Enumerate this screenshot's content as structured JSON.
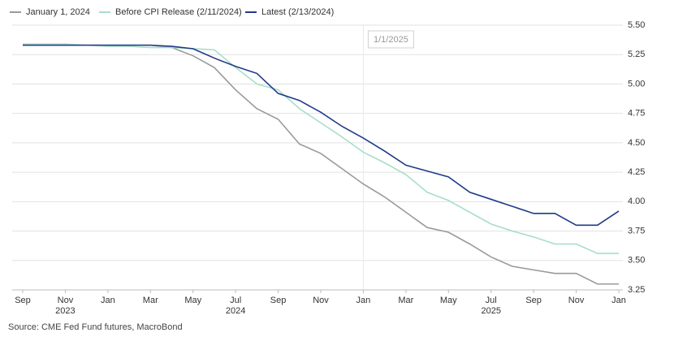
{
  "chart_data": {
    "type": "line",
    "categories": [
      "Sep",
      null,
      "Nov",
      null,
      "Jan",
      null,
      "Mar",
      null,
      "May",
      null,
      "Jul",
      null,
      "Sep",
      null,
      "Nov",
      null,
      "Jan",
      null,
      "Mar",
      null,
      "May",
      null,
      "Jul",
      null,
      "Sep",
      null,
      "Nov",
      null,
      "Jan"
    ],
    "category_years": [
      null,
      null,
      "2023",
      null,
      null,
      null,
      null,
      null,
      null,
      null,
      "2024",
      null,
      null,
      null,
      null,
      null,
      null,
      null,
      null,
      null,
      null,
      null,
      "2025",
      null,
      null,
      null,
      null,
      null,
      null
    ],
    "series": [
      {
        "name": "January 1, 2024",
        "color": "#9a9a9a",
        "values": [
          5.33,
          5.33,
          5.33,
          5.33,
          5.33,
          5.33,
          5.33,
          5.31,
          5.24,
          5.14,
          4.95,
          4.79,
          4.7,
          4.49,
          4.41,
          4.28,
          4.15,
          4.04,
          3.91,
          3.78,
          3.74,
          3.64,
          3.53,
          3.45,
          3.42,
          3.39,
          3.39,
          3.3,
          3.3
        ]
      },
      {
        "name": "Before CPI Release (2/11/2024)",
        "color": "#a6dfc6",
        "values": [
          5.34,
          5.34,
          5.34,
          5.33,
          5.32,
          5.32,
          5.31,
          5.31,
          5.3,
          5.29,
          5.14,
          5.0,
          4.95,
          4.79,
          4.67,
          4.55,
          4.42,
          4.33,
          4.23,
          4.08,
          4.01,
          3.91,
          3.81,
          3.75,
          3.7,
          3.64,
          3.64,
          3.56,
          3.56
        ]
      },
      {
        "name": "Latest (2/13/2024)",
        "color": "#1f3a8a",
        "values": [
          5.33,
          5.33,
          5.33,
          5.33,
          5.33,
          5.33,
          5.33,
          5.32,
          5.3,
          5.22,
          5.15,
          5.09,
          4.92,
          4.86,
          4.76,
          4.64,
          4.54,
          4.43,
          4.31,
          4.26,
          4.21,
          4.08,
          4.02,
          3.96,
          3.9,
          3.9,
          3.8,
          3.8,
          3.92
        ]
      }
    ],
    "ylim": [
      3.25,
      5.5
    ],
    "yticks": [
      3.25,
      {
        "value": 3.5,
        "label": "3.50"
      },
      3.75,
      {
        "value": 4,
        "label": "4.00"
      },
      4.25,
      {
        "value": 4.5,
        "label": "4.50"
      },
      4.75,
      {
        "value": 5,
        "label": "5.00"
      },
      5.25,
      {
        "value": 5.5,
        "label": "5.50"
      }
    ],
    "grid": true,
    "annotation": "1/1/2025",
    "source": "Source: CME Fed Fund futures, MacroBond"
  }
}
